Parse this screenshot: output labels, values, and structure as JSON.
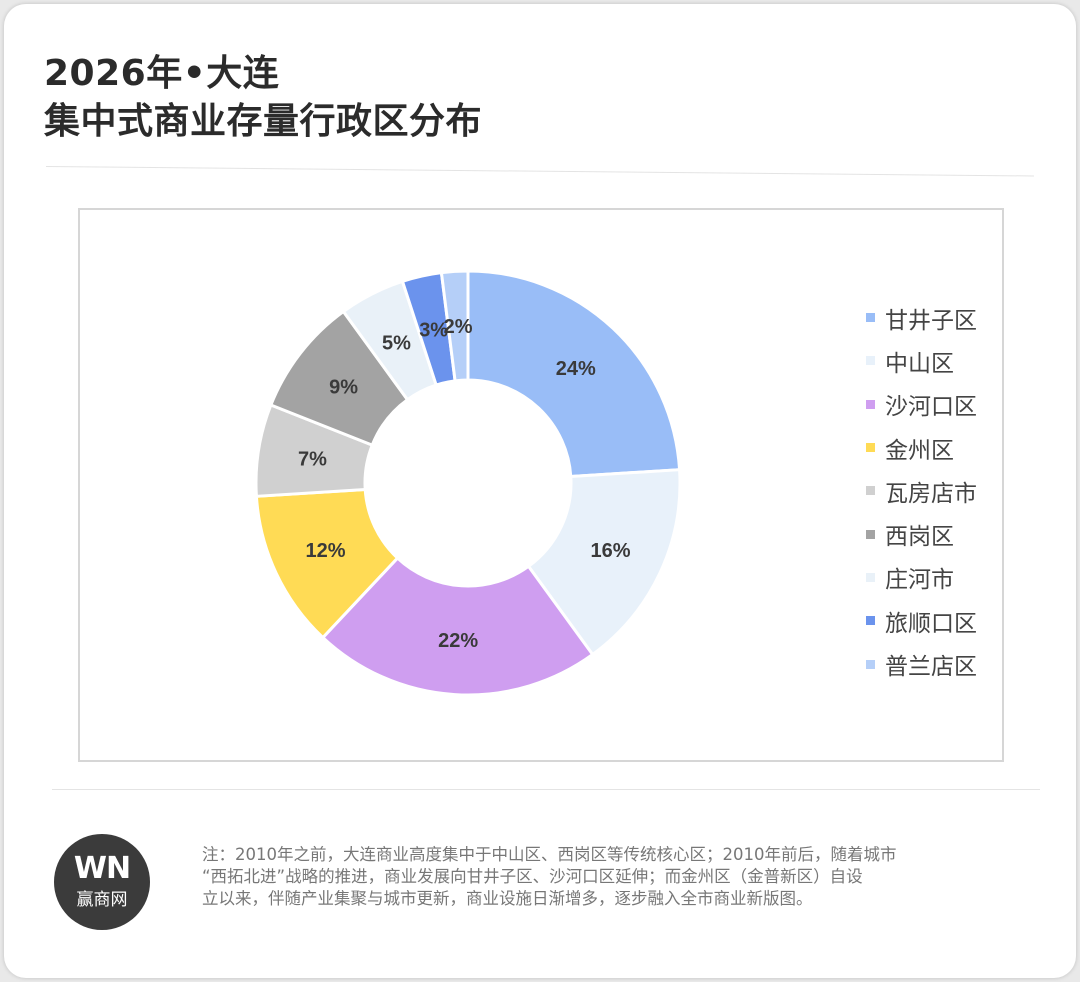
{
  "title": {
    "line1": "2026年•大连",
    "line2": "集中式商业存量行政区分布"
  },
  "chart_data": {
    "type": "pie",
    "variant": "donut",
    "labels": [
      "甘井子区",
      "中山区",
      "沙河口区",
      "金州区",
      "瓦房店市",
      "西岗区",
      "庄河市",
      "旅顺口区",
      "普兰店区"
    ],
    "values": [
      24,
      16,
      22,
      12,
      7,
      9,
      5,
      3,
      2
    ],
    "data_labels": [
      "24%",
      "16%",
      "22%",
      "12%",
      "7%",
      "9%",
      "5%",
      "3%",
      "2%"
    ],
    "colors": [
      "#99bdf7",
      "#e8f1fa",
      "#cf9ef0",
      "#ffdb55",
      "#d0d0d0",
      "#a3a3a3",
      "#e9f1f8",
      "#6b93ed",
      "#b5cff8"
    ],
    "legend_position": "right",
    "title": ""
  },
  "note": {
    "lines": [
      "注：2010年之前，大连商业高度集中于中山区、西岗区等传统核心区；2010年前后，随着城市",
      "“西拓北进”战略的推进，商业发展向甘井子区、沙河口区延伸；而金州区（金普新区）自设",
      "立以来，伴随产业集聚与城市更新，商业设施日渐增多，逐步融入全市商业新版图。"
    ]
  },
  "logo": {
    "mark": "WN",
    "text": "赢商网"
  }
}
